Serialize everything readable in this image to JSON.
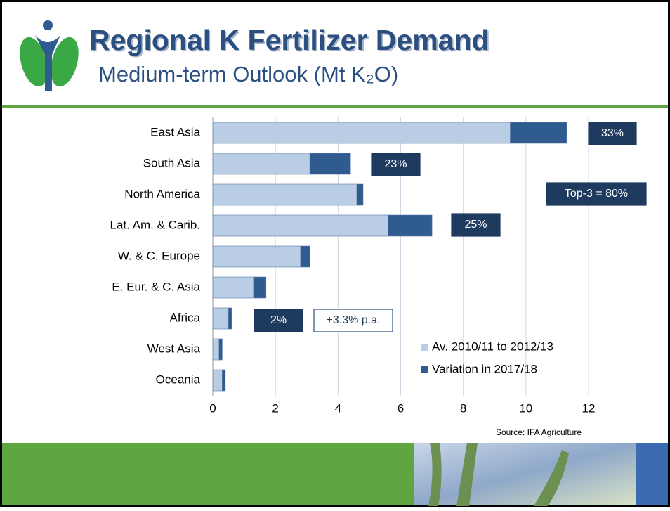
{
  "chart_data": {
    "type": "stacked-barh",
    "title": "Regional K Fertilizer Demand",
    "subtitle": "Medium-term Outlook (Mt K₂O)",
    "categories": [
      "East Asia",
      "South Asia",
      "North America",
      "Lat. Am. & Carib.",
      "W. & C. Europe",
      "E. Eur. & C. Asia",
      "Africa",
      "West Asia",
      "Oceania"
    ],
    "series": [
      {
        "name": "Av. 2010/11 to 2012/13",
        "color": "#b9cde5",
        "values": [
          9.5,
          3.1,
          4.6,
          5.6,
          2.8,
          1.3,
          0.5,
          0.2,
          0.3
        ]
      },
      {
        "name": "Variation in 2017/18",
        "color": "#2f5b8e",
        "values": [
          1.8,
          1.3,
          0.2,
          1.4,
          0.3,
          0.4,
          0.1,
          0.1,
          0.1
        ]
      }
    ],
    "xlim": [
      0,
      12
    ],
    "xticks": [
      0,
      2,
      4,
      6,
      8,
      10,
      12
    ],
    "grid": true,
    "legend": "lower right",
    "annotations": [
      "33%",
      "23%",
      "Top-3 = 80%",
      "25%",
      "2%",
      "+3.3% p.a."
    ],
    "source": "Source: IFA Agriculture"
  }
}
